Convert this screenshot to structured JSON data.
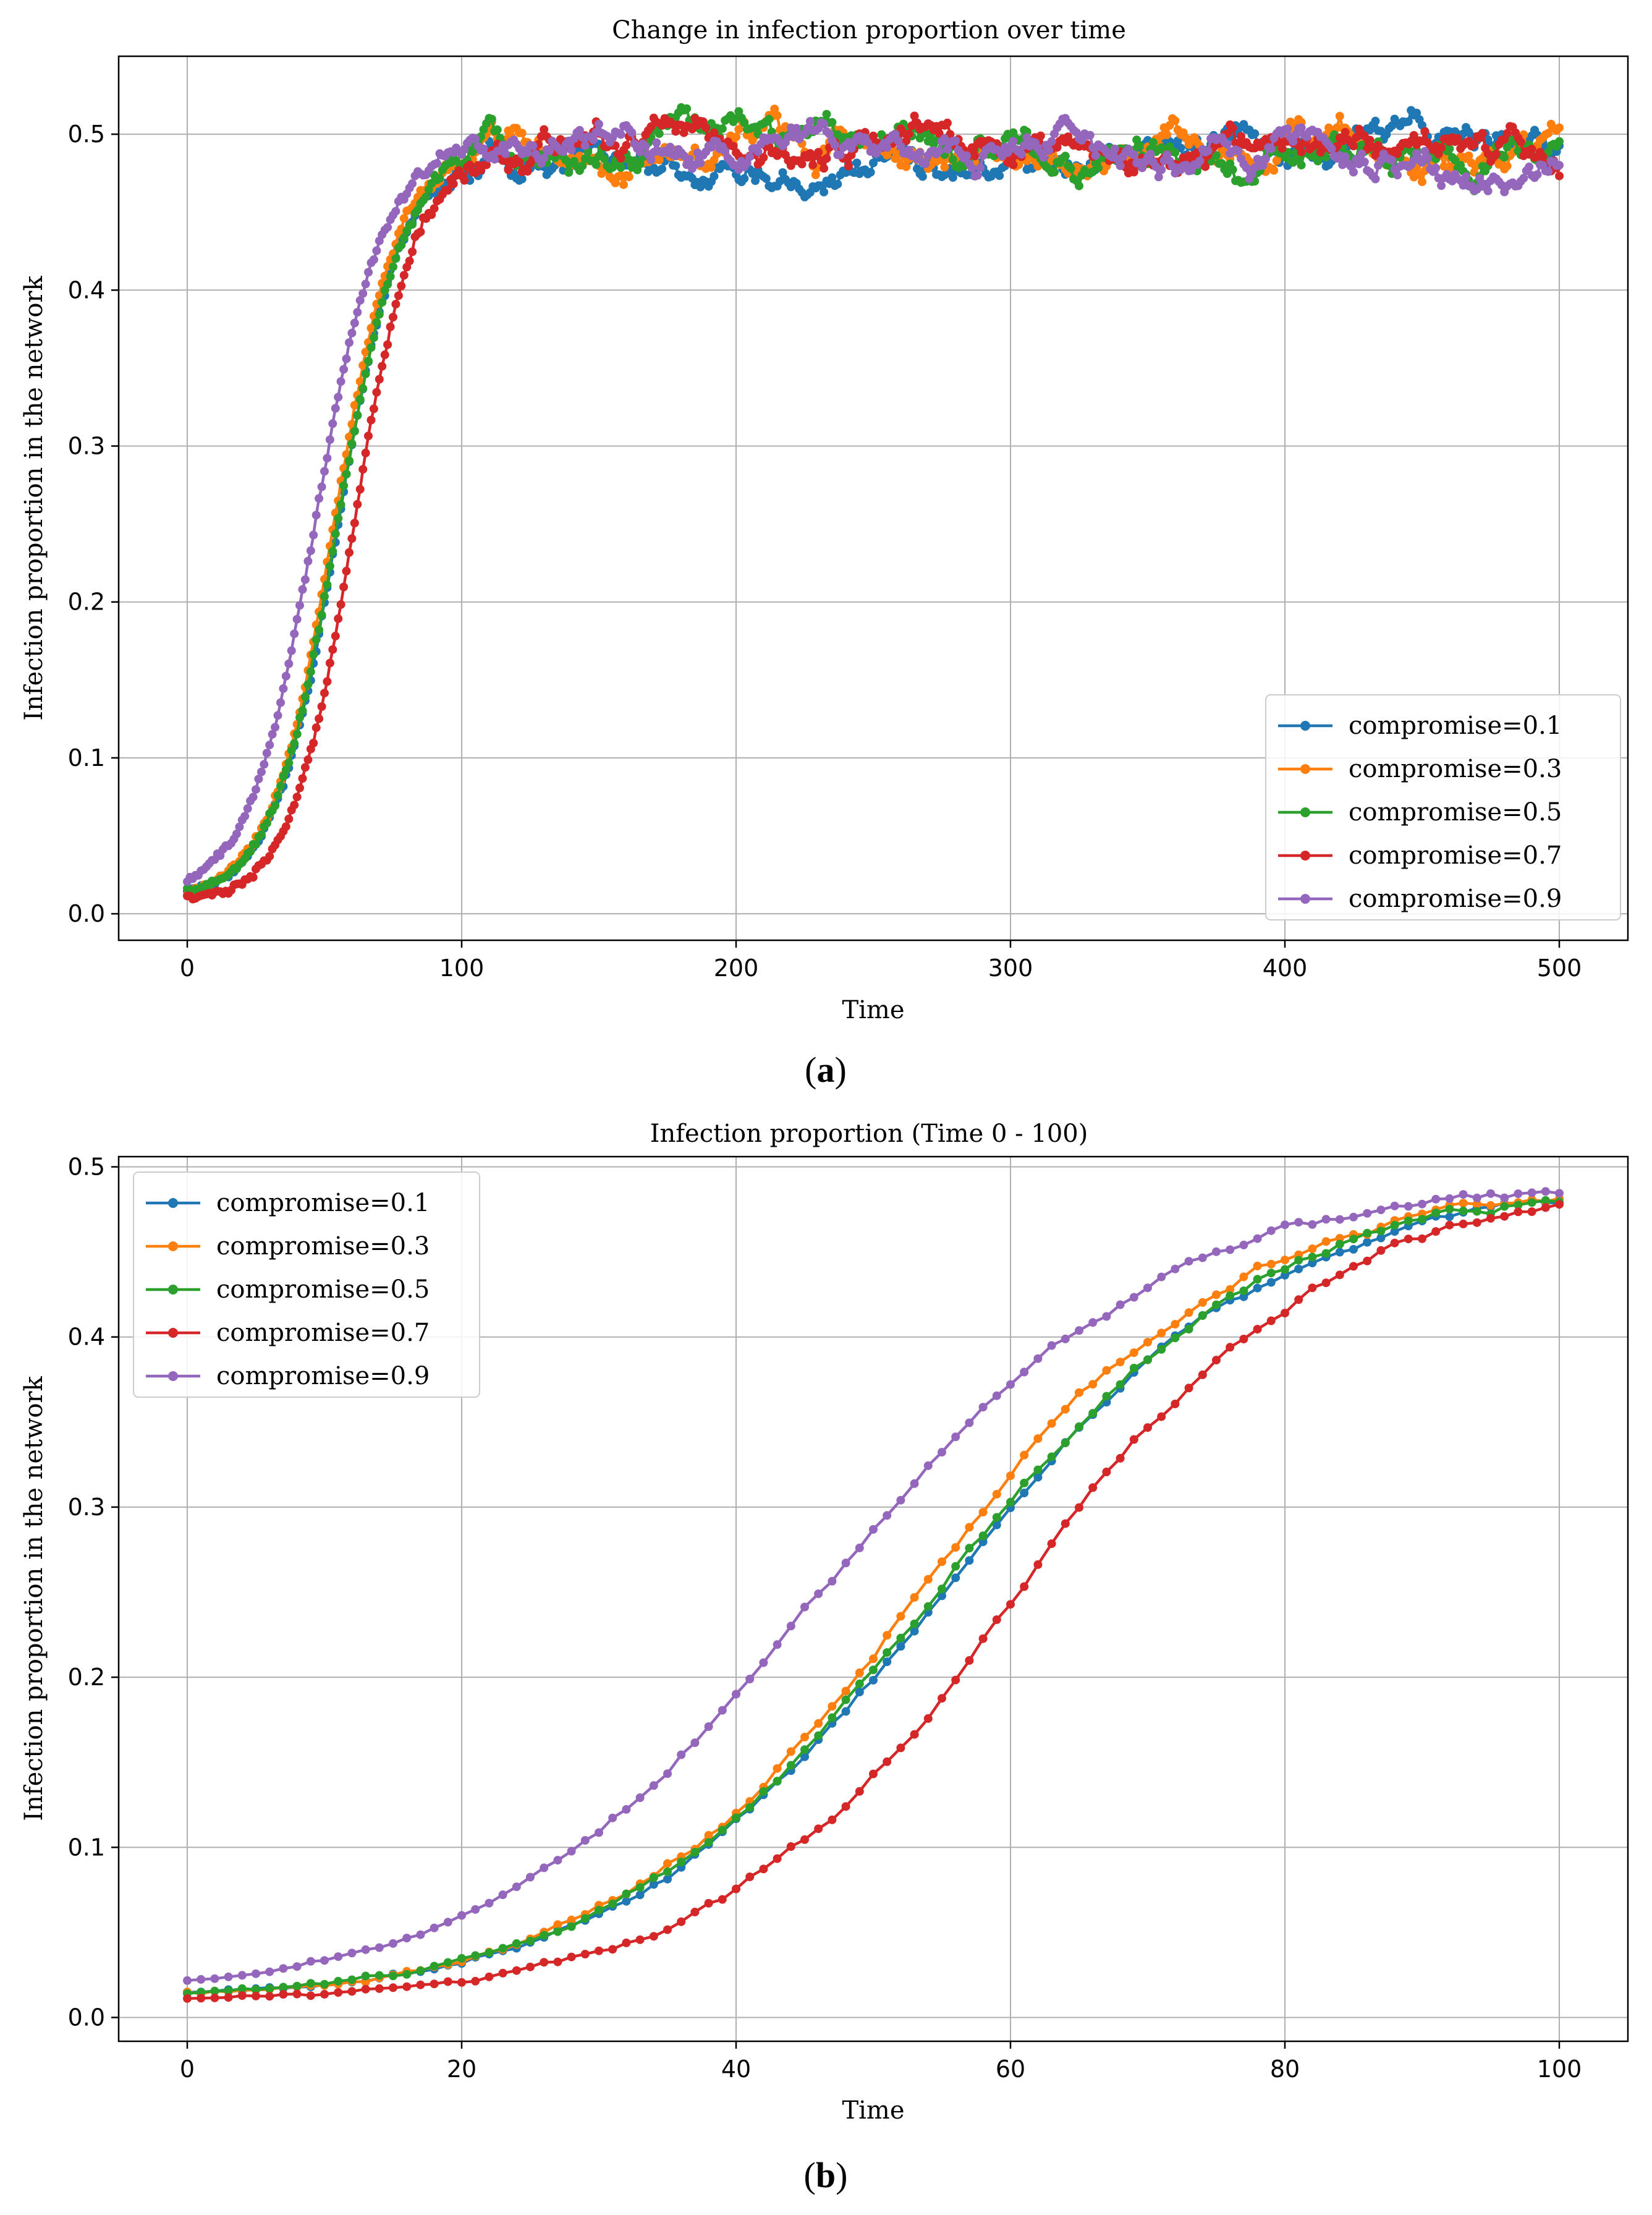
{
  "chart_data": [
    {
      "type": "line",
      "panel": "(a)",
      "panel_letter": "a",
      "title": "Change in infection proportion over time",
      "xlabel": "Time",
      "ylabel": "Infection proportion in the network",
      "xlim": [
        -25,
        525
      ],
      "ylim": [
        -0.017,
        0.55
      ],
      "xticks": [
        0,
        100,
        200,
        300,
        400,
        500
      ],
      "yticks": [
        0.0,
        0.1,
        0.2,
        0.3,
        0.4,
        0.5
      ],
      "xtick_labels": [
        "0",
        "100",
        "200",
        "300",
        "400",
        "500"
      ],
      "ytick_labels": [
        "0.0",
        "0.1",
        "0.2",
        "0.3",
        "0.4",
        "0.5"
      ],
      "grid": true,
      "legend_position": "lower-right",
      "x_range": [
        0,
        500
      ],
      "series": [
        {
          "name": "compromise=0.1",
          "color": "#1f77b4",
          "seed": 11,
          "curve": {
            "p": 0.49,
            "k": 0.085,
            "x0": 55,
            "y0": 0.01
          },
          "plateau": 0.493,
          "amp": 0.014
        },
        {
          "name": "compromise=0.3",
          "color": "#ff7f0e",
          "seed": 23,
          "curve": {
            "p": 0.49,
            "k": 0.088,
            "x0": 53.5,
            "y0": 0.01
          },
          "plateau": 0.492,
          "amp": 0.013
        },
        {
          "name": "compromise=0.5",
          "color": "#2ca02c",
          "seed": 37,
          "curve": {
            "p": 0.49,
            "k": 0.085,
            "x0": 54.5,
            "y0": 0.01
          },
          "plateau": 0.494,
          "amp": 0.013
        },
        {
          "name": "compromise=0.7",
          "color": "#d62728",
          "seed": 53,
          "curve": {
            "p": 0.49,
            "k": 0.09,
            "x0": 60.5,
            "y0": 0.009
          },
          "plateau": 0.49,
          "amp": 0.015
        },
        {
          "name": "compromise=0.9",
          "color": "#9467bd",
          "seed": 71,
          "curve": {
            "p": 0.49,
            "k": 0.082,
            "x0": 46.5,
            "y0": 0.011
          },
          "plateau": 0.492,
          "amp": 0.012
        }
      ]
    },
    {
      "type": "line",
      "panel": "(b)",
      "panel_letter": "b",
      "title": "Infection proportion (Time 0 - 100)",
      "xlabel": "Time",
      "ylabel": "Infection proportion in the network",
      "xlim": [
        -5,
        105
      ],
      "ylim": [
        -0.014,
        0.506
      ],
      "xticks": [
        0,
        20,
        40,
        60,
        80,
        100
      ],
      "yticks": [
        0.0,
        0.1,
        0.2,
        0.3,
        0.4,
        0.5
      ],
      "xtick_labels": [
        "0",
        "20",
        "40",
        "60",
        "80",
        "100"
      ],
      "ytick_labels": [
        "0.0",
        "0.1",
        "0.2",
        "0.3",
        "0.4",
        "0.5"
      ],
      "grid": true,
      "legend_position": "upper-left",
      "x_range": [
        0,
        100
      ],
      "series": [
        {
          "name": "compromise=0.1",
          "color": "#1f77b4",
          "seed": 101,
          "curve": {
            "p": 0.49,
            "k": 0.085,
            "x0": 55,
            "y0": 0.01
          }
        },
        {
          "name": "compromise=0.3",
          "color": "#ff7f0e",
          "seed": 131,
          "curve": {
            "p": 0.49,
            "k": 0.088,
            "x0": 53.5,
            "y0": 0.01
          }
        },
        {
          "name": "compromise=0.5",
          "color": "#2ca02c",
          "seed": 151,
          "curve": {
            "p": 0.49,
            "k": 0.085,
            "x0": 54.5,
            "y0": 0.01
          }
        },
        {
          "name": "compromise=0.7",
          "color": "#d62728",
          "seed": 171,
          "curve": {
            "p": 0.49,
            "k": 0.09,
            "x0": 60.5,
            "y0": 0.009
          }
        },
        {
          "name": "compromise=0.9",
          "color": "#9467bd",
          "seed": 191,
          "curve": {
            "p": 0.49,
            "k": 0.082,
            "x0": 46.5,
            "y0": 0.011
          }
        }
      ]
    }
  ]
}
